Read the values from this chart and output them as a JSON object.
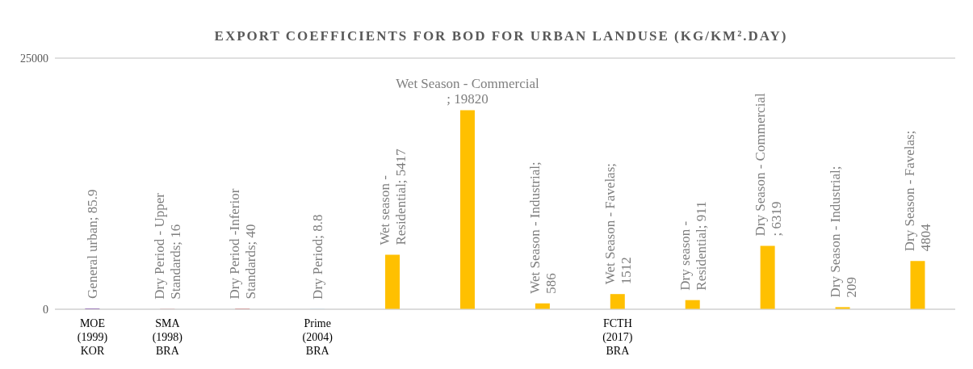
{
  "chart_data": {
    "type": "bar",
    "title": "EXPORT COEFFICIENTS FOR BOD FOR URBAN LANDUSE (KG/KM².DAY)",
    "categories": [
      "MOE (1999) KOR",
      "SMA (1998) BRA",
      null,
      "Prime (2004) BRA",
      null,
      null,
      null,
      "FCTH (2017) BRA",
      null,
      null,
      null,
      null
    ],
    "values": [
      85.9,
      16,
      40,
      8.8,
      5417,
      19820,
      586,
      1512,
      911,
      6319,
      209,
      4804
    ],
    "colors": [
      "#7030a0",
      "#c00000",
      "#c00000",
      "#00b0f0",
      "#ffc000",
      "#ffc000",
      "#ffc000",
      "#ffc000",
      "#ffc000",
      "#ffc000",
      "#ffc000",
      "#ffc000"
    ],
    "value_labels": [
      "General urban; 85.9",
      "Dry Period - Upper Standards; 16",
      "Dry Period -Inferior Standards; 40",
      "Dry Period; 8.8",
      "Wet season - Residential; 5417",
      "Wet Season - Commercial ; 19820",
      "Wet Season - Industrial; 586",
      "Wet Season - Favelas; 1512",
      "Dry season - Residential; 911",
      "Dry Season - Commercial ; 6319",
      "Dry Season - Industrial; 209",
      "Dry Season - Favelas; 4804"
    ],
    "ylim": [
      0,
      25000
    ],
    "yticks": [
      0,
      25000
    ],
    "grid": "y",
    "legend": false
  }
}
